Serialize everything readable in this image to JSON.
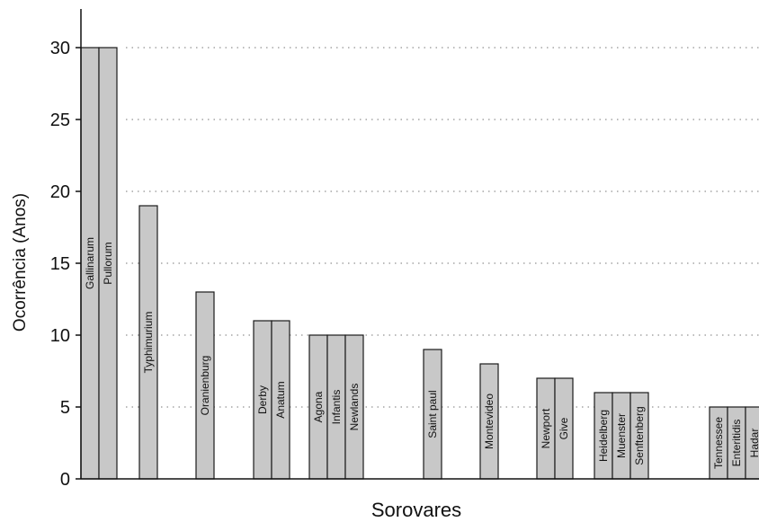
{
  "chart_data": {
    "type": "bar",
    "xlabel": "Sorovares",
    "ylabel": "Ocorrência (Anos)",
    "ylim": [
      0,
      32
    ],
    "yticks": [
      0,
      5,
      10,
      15,
      20,
      25,
      30
    ],
    "grid": "horizontal dotted",
    "bar_color": "#c8c8c8",
    "groups": [
      {
        "bars": [
          {
            "label": "Gallinarum",
            "value": 30
          },
          {
            "label": "Pullorum",
            "value": 30
          }
        ]
      },
      {
        "bars": [
          {
            "label": "Typhimurium",
            "value": 19
          }
        ]
      },
      {
        "bars": [
          {
            "label": "Oranienburg",
            "value": 13
          }
        ]
      },
      {
        "bars": [
          {
            "label": "Derby",
            "value": 11
          },
          {
            "label": "Anatum",
            "value": 11
          }
        ]
      },
      {
        "bars": [
          {
            "label": "Agona",
            "value": 10
          },
          {
            "label": "Infantis",
            "value": 10
          },
          {
            "label": "Newlands",
            "value": 10
          }
        ]
      },
      {
        "bars": [
          {
            "label": "Saint paul",
            "value": 9
          }
        ]
      },
      {
        "bars": [
          {
            "label": "Montevideo",
            "value": 8
          }
        ]
      },
      {
        "bars": [
          {
            "label": "Newport",
            "value": 7
          },
          {
            "label": "Give",
            "value": 7
          }
        ]
      },
      {
        "bars": [
          {
            "label": "Heidelberg",
            "value": 6
          },
          {
            "label": "Muenster",
            "value": 6
          },
          {
            "label": "Senftenberg",
            "value": 6
          }
        ]
      },
      {
        "bars": [
          {
            "label": "Tennessee",
            "value": 5
          },
          {
            "label": "Enteritidis",
            "value": 5
          },
          {
            "label": "Hadar",
            "value": 5
          }
        ]
      }
    ]
  }
}
